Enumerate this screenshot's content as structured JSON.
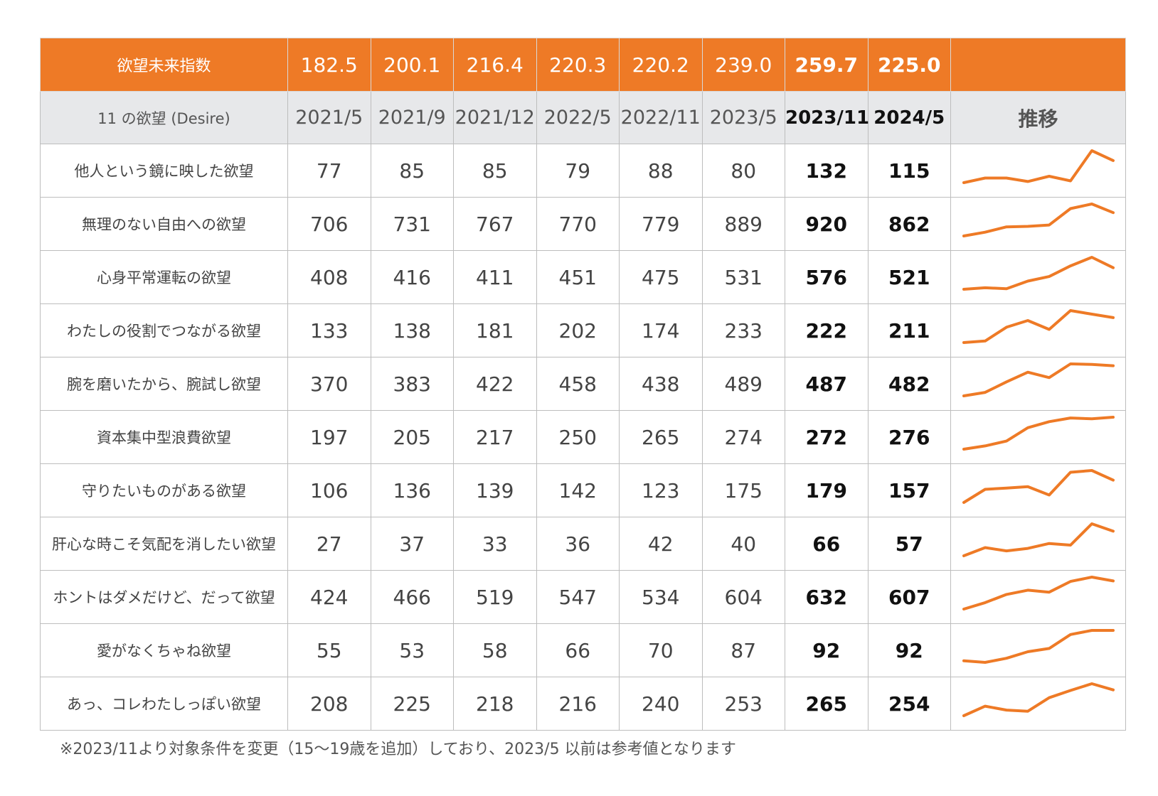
{
  "chart_data": {
    "type": "table",
    "index_label": "欲望未来指数",
    "index_values": [
      "182.5",
      "200.1",
      "216.4",
      "220.3",
      "220.2",
      "239.0",
      "259.7",
      "225.0"
    ],
    "header_label": "11 の欲望 (Desire)",
    "periods": [
      "2021/5",
      "2021/9",
      "2021/12",
      "2022/5",
      "2022/11",
      "2023/5",
      "2023/11",
      "2024/5"
    ],
    "trend_header": "推移",
    "rows": [
      {
        "label": "他人という鏡に映した欲望",
        "values": [
          77,
          85,
          85,
          79,
          88,
          80,
          132,
          115
        ]
      },
      {
        "label": "無理のない自由への欲望",
        "values": [
          706,
          731,
          767,
          770,
          779,
          889,
          920,
          862
        ]
      },
      {
        "label": "心身平常運転の欲望",
        "values": [
          408,
          416,
          411,
          451,
          475,
          531,
          576,
          521
        ]
      },
      {
        "label": "わたしの役割でつながる欲望",
        "values": [
          133,
          138,
          181,
          202,
          174,
          233,
          222,
          211
        ]
      },
      {
        "label": "腕を磨いたから、腕試し欲望",
        "values": [
          370,
          383,
          422,
          458,
          438,
          489,
          487,
          482
        ]
      },
      {
        "label": "資本集中型浪費欲望",
        "values": [
          197,
          205,
          217,
          250,
          265,
          274,
          272,
          276
        ]
      },
      {
        "label": "守りたいものがある欲望",
        "values": [
          106,
          136,
          139,
          142,
          123,
          175,
          179,
          157
        ]
      },
      {
        "label": "肝心な時こそ気配を消したい欲望",
        "values": [
          27,
          37,
          33,
          36,
          42,
          40,
          66,
          57
        ]
      },
      {
        "label": "ホントはダメだけど、だって欲望",
        "values": [
          424,
          466,
          519,
          547,
          534,
          604,
          632,
          607
        ]
      },
      {
        "label": "愛がなくちゃね欲望",
        "values": [
          55,
          53,
          58,
          66,
          70,
          87,
          92,
          92
        ]
      },
      {
        "label": "あっ、コレわたしっぽい欲望",
        "values": [
          208,
          225,
          218,
          216,
          240,
          253,
          265,
          254
        ]
      }
    ],
    "bold_columns": [
      "2023/11",
      "2024/5"
    ]
  },
  "colors": {
    "accent": "#ee7a26",
    "header_gray": "#e7e8ea",
    "sparkline": "#ee7a26"
  },
  "footnote": "※2023/11より対象条件を変更（15～19歳を追加）しており、2023/5 以前は参考値となります"
}
